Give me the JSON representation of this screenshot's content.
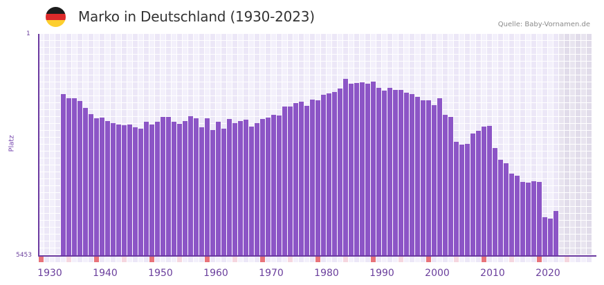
{
  "header": {
    "title": "Marko in Deutschland (1930-2023)",
    "source": "Quelle: Baby-Vornamen.de",
    "flag_colors": [
      "#1c1c1c",
      "#dd2a2a",
      "#fdcf2f"
    ]
  },
  "colors": {
    "bar": "#8c55c6",
    "axis": "#6b3aa0",
    "grid_light": "#f3f0fb",
    "grid_dark": "#ece7f7",
    "future_light": "#e8e4ef",
    "future_dark": "#e1dcea",
    "marker_decade": "#e8737a",
    "marker_half": "#f5d6df",
    "strip_light": "#f3f0fb",
    "strip_dark": "#ece7f7"
  },
  "axis": {
    "y_top_label": "1",
    "y_bottom_label": "5453",
    "y_title": "Platz"
  },
  "chart_data": {
    "type": "bar",
    "title": "Marko in Deutschland (1930-2023)",
    "xlabel": "",
    "ylabel": "Platz",
    "ylim": [
      5453,
      1
    ],
    "y_inverted": true,
    "x_tick_labels": [
      "1930",
      "1940",
      "1950",
      "1960",
      "1970",
      "1980",
      "1990",
      "2000",
      "2010",
      "2020"
    ],
    "x_range": [
      1930,
      2029
    ],
    "grid": true,
    "legend": null,
    "x": [
      1934,
      1935,
      1936,
      1937,
      1938,
      1939,
      1940,
      1941,
      1942,
      1943,
      1944,
      1945,
      1946,
      1947,
      1948,
      1949,
      1950,
      1951,
      1952,
      1953,
      1954,
      1955,
      1956,
      1957,
      1958,
      1959,
      1960,
      1961,
      1962,
      1963,
      1964,
      1965,
      1966,
      1967,
      1968,
      1969,
      1970,
      1971,
      1972,
      1973,
      1974,
      1975,
      1976,
      1977,
      1978,
      1979,
      1980,
      1981,
      1982,
      1983,
      1984,
      1985,
      1986,
      1987,
      1988,
      1989,
      1990,
      1991,
      1992,
      1993,
      1994,
      1995,
      1996,
      1997,
      1998,
      1999,
      2000,
      2001,
      2002,
      2003,
      2004,
      2005,
      2006,
      2007,
      2008,
      2009,
      2010,
      2011,
      2012,
      2013,
      2014,
      2015,
      2016,
      2017,
      2018,
      2019,
      2020,
      2021,
      2022,
      2023
    ],
    "values": [
      1483,
      1586,
      1586,
      1654,
      1824,
      1977,
      2080,
      2063,
      2148,
      2199,
      2233,
      2250,
      2233,
      2301,
      2335,
      2165,
      2233,
      2165,
      2046,
      2046,
      2165,
      2216,
      2148,
      2028,
      2080,
      2301,
      2080,
      2369,
      2165,
      2335,
      2097,
      2199,
      2148,
      2114,
      2284,
      2199,
      2097,
      2063,
      1994,
      2011,
      1790,
      1790,
      1705,
      1671,
      1773,
      1620,
      1637,
      1500,
      1466,
      1432,
      1347,
      1108,
      1228,
      1211,
      1194,
      1228,
      1177,
      1330,
      1398,
      1330,
      1381,
      1381,
      1449,
      1483,
      1551,
      1637,
      1637,
      1756,
      1586,
      1994,
      2046,
      2659,
      2727,
      2710,
      2454,
      2386,
      2284,
      2267,
      2812,
      3102,
      3187,
      3442,
      3494,
      3647,
      3664,
      3630,
      3647,
      4516,
      4550,
      4362
    ],
    "future_shaded_from": 2024
  },
  "x_labels": [
    {
      "text": "1930",
      "x": 72
    },
    {
      "text": "1940",
      "x": 152
    },
    {
      "text": "1950",
      "x": 232
    },
    {
      "text": "1960",
      "x": 312
    },
    {
      "text": "1970",
      "x": 392
    },
    {
      "text": "1980",
      "x": 472
    },
    {
      "text": "1990",
      "x": 552
    },
    {
      "text": "2000",
      "x": 632
    },
    {
      "text": "2010",
      "x": 712
    },
    {
      "text": "2020",
      "x": 792
    }
  ]
}
